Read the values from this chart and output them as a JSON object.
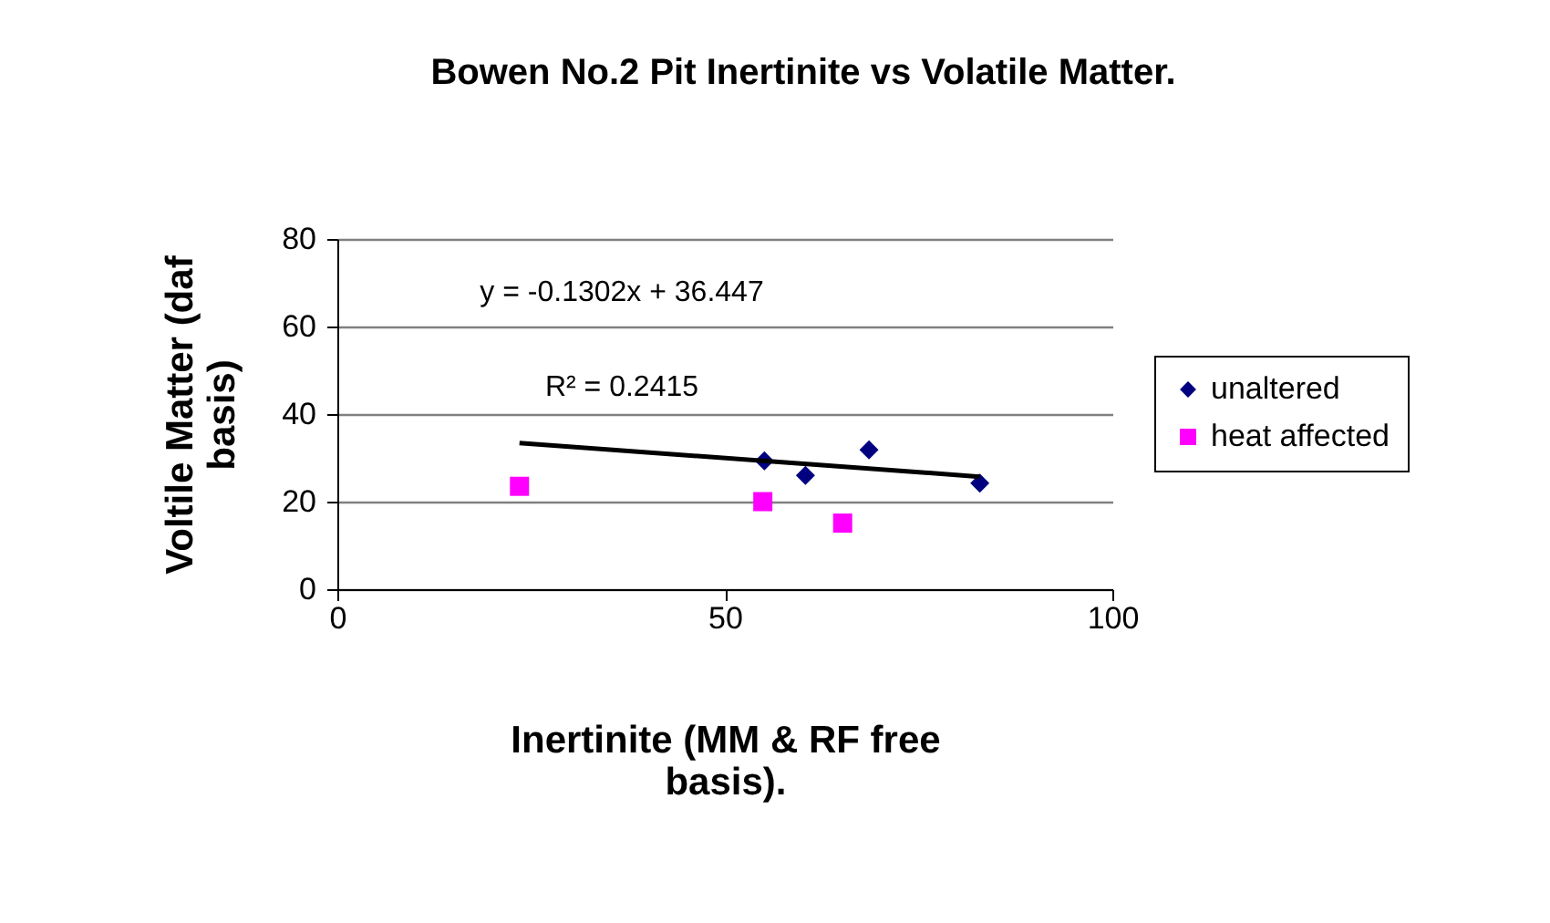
{
  "chart_data": {
    "type": "scatter",
    "title": "Bowen No.2 Pit Inertinite vs Volatile Matter.",
    "xlabel": "Inertinite (MM & RF free basis).",
    "ylabel": "Voltile Matter (daf basis)",
    "xlim": [
      0,
      100
    ],
    "xticks": [
      0,
      50,
      100
    ],
    "ylim": [
      0,
      80
    ],
    "yticks": [
      0,
      20,
      40,
      60,
      80
    ],
    "grid": "y",
    "legend": "right",
    "annotations": [
      "y = -0.1302x + 36.447",
      "R² = 0.2415"
    ],
    "series": [
      {
        "name": "unaltered",
        "color": "#000080",
        "marker": "diamond",
        "x": [
          55.1,
          60.4,
          68.6,
          82.9
        ],
        "values": [
          29.3,
          26.0,
          31.8,
          24.2
        ]
      },
      {
        "name": "heat affected",
        "color": "#ff00ff",
        "marker": "square",
        "x": [
          23.5,
          54.9,
          65.2
        ],
        "values": [
          23.5,
          20.0,
          15.1
        ]
      },
      {
        "type": "line",
        "color": "#000000",
        "marker": "none",
        "x": [
          23.5,
          82.9
        ],
        "values": [
          33.4,
          25.7
        ]
      }
    ]
  }
}
